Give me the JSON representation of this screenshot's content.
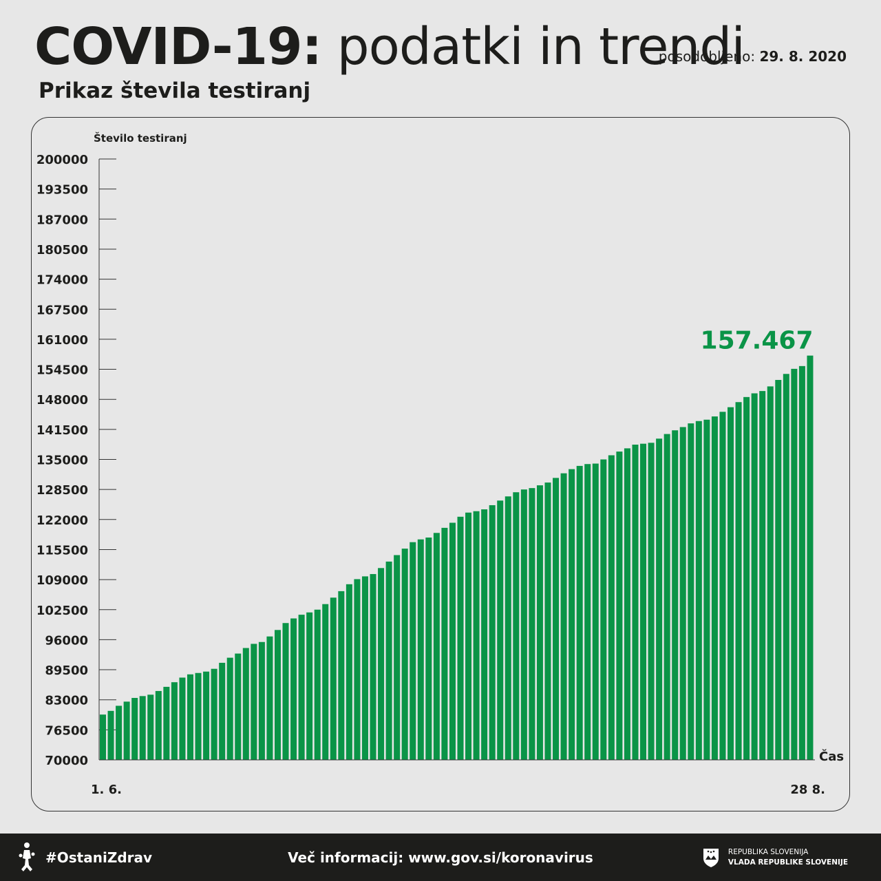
{
  "header": {
    "title_bold": "COVID-19:",
    "title_light": "podatki in trendi",
    "updated_label": "posodobljeno:",
    "updated_date": "29. 8. 2020",
    "subtitle": "Prikaz števila testiranj"
  },
  "colors": {
    "bar": "#0a9447",
    "highlight": "#0a9447",
    "text": "#1d1d1b",
    "background": "#e7e7e7",
    "footer": "#1d1d1b"
  },
  "chart_data": {
    "type": "bar",
    "ylabel": "Število testiranj",
    "xlabel": "Čas",
    "ylim": [
      70000,
      200000
    ],
    "yticks": [
      "200000",
      "193500",
      "187000",
      "180500",
      "174000",
      "167500",
      "161000",
      "154500",
      "148000",
      "141500",
      "135000",
      "128500",
      "122000",
      "115500",
      "109000",
      "102500",
      "96000",
      "89500",
      "83000",
      "76500",
      "70000"
    ],
    "x_start_label": "1. 6.",
    "x_end_label": "28 8.",
    "highlight_value": "157.467",
    "values": [
      79800,
      80600,
      81700,
      82600,
      83400,
      83800,
      84100,
      84900,
      85800,
      86800,
      87800,
      88500,
      88800,
      89100,
      89700,
      91000,
      92100,
      93000,
      94200,
      95100,
      95500,
      96700,
      98100,
      99600,
      100600,
      101400,
      101900,
      102500,
      103700,
      105100,
      106500,
      108000,
      109100,
      109700,
      110200,
      111500,
      112900,
      114300,
      115700,
      117100,
      117700,
      118100,
      119100,
      120200,
      121300,
      122600,
      123500,
      123800,
      124200,
      125100,
      126100,
      127000,
      127900,
      128500,
      128800,
      129400,
      130000,
      131000,
      132000,
      132900,
      133600,
      134000,
      134100,
      135000,
      135900,
      136700,
      137400,
      138200,
      138400,
      138600,
      139500,
      140500,
      141300,
      142000,
      142800,
      143300,
      143600,
      144300,
      145300,
      146300,
      147400,
      148500,
      149300,
      149800,
      150800,
      152200,
      153500,
      154600,
      155200,
      157467
    ]
  },
  "footer": {
    "hashtag": "#OstaniZdrav",
    "info": "Več informacij: www.gov.si/koronavirus",
    "gov_line1": "REPUBLIKA SLOVENIJA",
    "gov_line2": "VLADA REPUBLIKE SLOVENIJE"
  }
}
